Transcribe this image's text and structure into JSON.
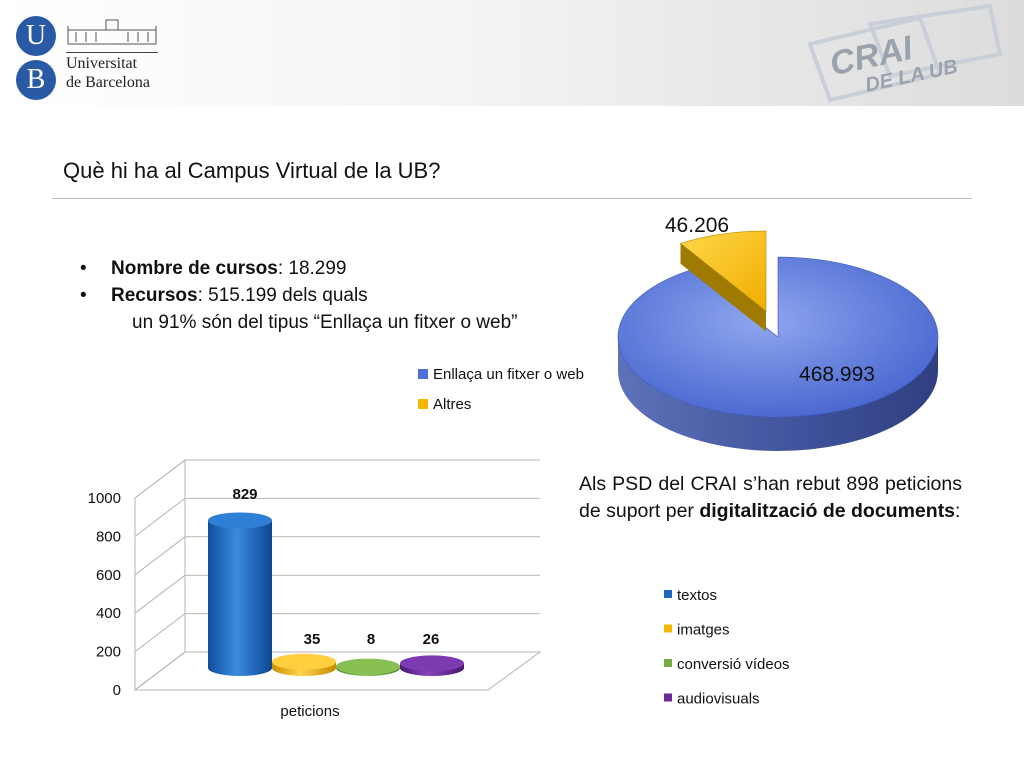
{
  "header": {
    "university_logo": {
      "letters": [
        "U",
        "B"
      ],
      "name_lines": [
        "Universitat",
        "de Barcelona"
      ]
    },
    "crai_logo": {
      "line1": "CRAI",
      "line2": "DE LA UB"
    }
  },
  "slide": {
    "title": "Què hi ha al Campus Virtual de la UB?",
    "bullets": [
      {
        "marker": "•",
        "bold": "Nombre de cursos",
        "text": ": 18.299"
      },
      {
        "marker": "•",
        "bold": "Recursos",
        "text": ": 515.199 dels quals",
        "continuation": "un 91% són del tipus “Enllaça un fitxer o web”"
      }
    ],
    "paragraph": {
      "text": "Als PSD del CRAI s’han rebut 898 peticions de suport per ",
      "bold": "digitalització de documents",
      "tail": ":"
    }
  },
  "chart_data": [
    {
      "type": "pie",
      "style": "3d exploded",
      "labels": [
        "Enllaça un fitxer o web",
        "Altres"
      ],
      "values": [
        468993,
        46206
      ],
      "data_labels": [
        "468.993",
        "46.206"
      ],
      "colors": [
        "#4f71d6",
        "#f5b800"
      ],
      "legend": "left"
    },
    {
      "type": "bar",
      "style": "3d cylinder",
      "categories": [
        "peticions"
      ],
      "series": [
        {
          "name": "textos",
          "values": [
            829
          ],
          "label": "829",
          "color": "#1a67bd"
        },
        {
          "name": "imatges",
          "values": [
            35
          ],
          "label": "35",
          "color": "#f2b800"
        },
        {
          "name": "conversió vídeos",
          "values": [
            8
          ],
          "label": "8",
          "color": "#72ad3e"
        },
        {
          "name": "audiovisuals",
          "values": [
            26
          ],
          "label": "26",
          "color": "#6a2a98"
        }
      ],
      "ylim": [
        0,
        1000
      ],
      "yticks": [
        "0",
        "200",
        "400",
        "600",
        "800",
        "1000"
      ],
      "grid": true,
      "legend": "right"
    }
  ]
}
